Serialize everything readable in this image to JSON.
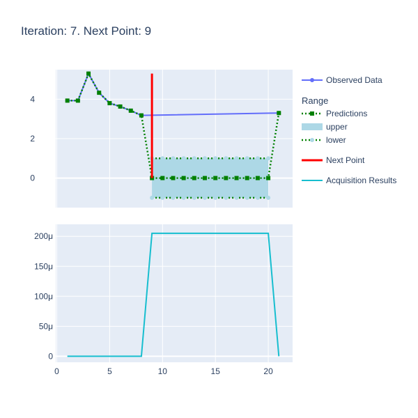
{
  "title": "Iteration: 7. Next Point: 9",
  "legend": {
    "observed": "Observed Data",
    "range_title": "Range",
    "predictions": "Predictions",
    "upper": "upper",
    "lower": "lower",
    "next_point": "Next Point",
    "acquisition": "Acquisition Results"
  },
  "colors": {
    "observed": "#636efa",
    "predictions": "#008000",
    "band_fill": "#add8e6",
    "next_point": "#ff0000",
    "acquisition": "#17becf",
    "plot_bg": "#e5ecf6",
    "text": "#2a3f5f"
  },
  "chart_data": [
    {
      "type": "line",
      "panel": "top",
      "xlim": [
        -0.1,
        22.3
      ],
      "ylim": [
        -1.5,
        5.5
      ],
      "yticks": [
        0,
        2,
        4
      ],
      "grid": true,
      "series": [
        {
          "name": "Observed Data",
          "x": [
            1,
            2,
            3,
            4,
            5,
            6,
            7,
            8,
            21
          ],
          "y": [
            3.93,
            3.93,
            5.3,
            4.33,
            3.8,
            3.63,
            3.42,
            3.18,
            3.3
          ]
        },
        {
          "name": "Predictions",
          "x": [
            1,
            2,
            3,
            4,
            5,
            6,
            7,
            8,
            9,
            10,
            11,
            12,
            13,
            14,
            15,
            16,
            17,
            18,
            19,
            20,
            21
          ],
          "y": [
            3.93,
            3.93,
            5.3,
            4.33,
            3.8,
            3.63,
            3.42,
            3.18,
            0,
            0,
            0,
            0,
            0,
            0,
            0,
            0,
            0,
            0,
            0,
            0,
            3.3
          ]
        },
        {
          "name": "upper",
          "x": [
            9,
            10,
            11,
            12,
            13,
            14,
            15,
            16,
            17,
            18,
            19,
            20
          ],
          "y": [
            1,
            1,
            1,
            1,
            1,
            1,
            1,
            1,
            1,
            1,
            1,
            1
          ]
        },
        {
          "name": "lower",
          "x": [
            9,
            10,
            11,
            12,
            13,
            14,
            15,
            16,
            17,
            18,
            19,
            20
          ],
          "y": [
            -1,
            -1,
            -1,
            -1,
            -1,
            -1,
            -1,
            -1,
            -1,
            -1,
            -1,
            -1
          ]
        },
        {
          "name": "Next Point",
          "x": [
            9,
            9
          ],
          "y": [
            0,
            5.3
          ]
        }
      ]
    },
    {
      "type": "line",
      "panel": "bottom",
      "xlim": [
        -0.1,
        22.3
      ],
      "ylim": [
        -1e-05,
        0.00022
      ],
      "xticks": [
        0,
        5,
        10,
        15,
        20
      ],
      "yticks": [
        0,
        5e-05,
        0.0001,
        0.00015,
        0.0002
      ],
      "ytick_labels": [
        "0",
        "50μ",
        "100μ",
        "150μ",
        "200μ"
      ],
      "grid": true,
      "series": [
        {
          "name": "Acquisition Results",
          "x": [
            1,
            2,
            3,
            4,
            5,
            6,
            7,
            8,
            9,
            10,
            11,
            12,
            13,
            14,
            15,
            16,
            17,
            18,
            19,
            20,
            21
          ],
          "y": [
            0,
            0,
            0,
            0,
            0,
            0,
            0,
            0,
            0.000205,
            0.000205,
            0.000205,
            0.000205,
            0.000205,
            0.000205,
            0.000205,
            0.000205,
            0.000205,
            0.000205,
            0.000205,
            0.000205,
            0
          ]
        }
      ]
    }
  ]
}
